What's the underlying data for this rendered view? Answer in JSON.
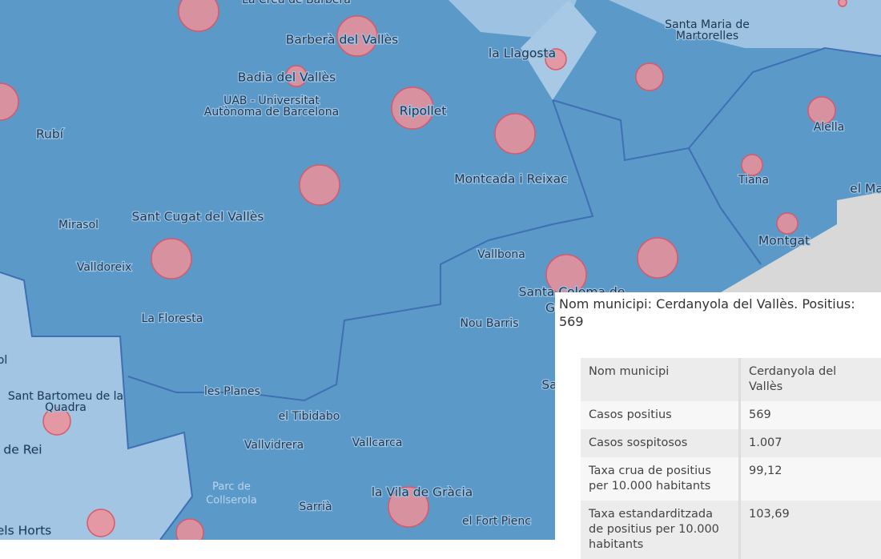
{
  "map": {
    "labels": [
      "La Creu de Barbera",
      "Barberà del Vallès",
      "la Llagosta",
      "Santa Maria de",
      "Martorelles",
      "Badia del Vallès",
      "UAB - Universitat",
      "Autònoma de Barcelona",
      "Ripollet",
      "Rubí",
      "Alella",
      "Montcada i Reixac",
      "Tiana",
      "el Ma",
      "Mirasol",
      "Sant Cugat del Vallès",
      "Montgat",
      "Valldoreix",
      "Vallbona",
      "Santa Coloma de",
      "G",
      "La Floresta",
      "Nou Barris",
      "Sant Bartomeu de la",
      "Quadra",
      "les Planes",
      "el Tibidabo",
      "Vallvidrera",
      "Vallcarca",
      "s de Rei",
      "Parc de",
      "Collserola",
      "Sarrià",
      "la Vila de Gràcia",
      "el Fort Pienc",
      "els Horts",
      "Sa",
      "ol"
    ]
  },
  "popup": {
    "title": "Nom municipi: Cerdanyola del Vallès. Positius: 569",
    "table": {
      "rows": [
        [
          "Nom municipi",
          "Cerdanyola del Vallès"
        ],
        [
          "Casos positius",
          "569"
        ],
        [
          "Casos sospitosos",
          "1.007"
        ],
        [
          "Taxa crua de positius per 10.000 habitants",
          "99,12"
        ],
        [
          "Taxa estandarditzada de positius per 10.000 habitants",
          "103,69"
        ]
      ]
    }
  }
}
